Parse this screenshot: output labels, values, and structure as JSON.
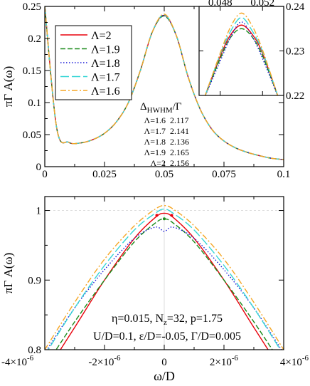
{
  "chart_data": [
    {
      "type": "line",
      "panel": "top",
      "xlim": [
        0,
        0.1
      ],
      "ylim": [
        0,
        0.25
      ],
      "xticks": [
        "0",
        "0.025",
        "0.05",
        "0.075",
        "0.1"
      ],
      "yticks": [
        "0",
        "0.05",
        "0.1",
        "0.15",
        "0.2",
        "0.25"
      ],
      "xlabel": "",
      "ylabel": "πΓ A(ω)",
      "legend_position": "top-left",
      "grid": false,
      "x": [
        0,
        0.005,
        0.01,
        0.015,
        0.02,
        0.025,
        0.03,
        0.035,
        0.04,
        0.045,
        0.05,
        0.055,
        0.06,
        0.065,
        0.07,
        0.075,
        0.08,
        0.085,
        0.09,
        0.095,
        0.1
      ],
      "series": [
        {
          "name": "Λ=2",
          "color": "#e8000b",
          "dash": "solid",
          "values": [
            0.25,
            0.06,
            0.038,
            0.037,
            0.042,
            0.052,
            0.07,
            0.1,
            0.15,
            0.21,
            0.236,
            0.205,
            0.14,
            0.09,
            0.058,
            0.04,
            0.029,
            0.022,
            0.017,
            0.013,
            0.011
          ]
        },
        {
          "name": "Λ=1.9",
          "color": "#1a8a1a",
          "dash": "dashed",
          "values": [
            0.25,
            0.06,
            0.038,
            0.037,
            0.042,
            0.052,
            0.07,
            0.1,
            0.15,
            0.21,
            0.235,
            0.205,
            0.14,
            0.09,
            0.058,
            0.04,
            0.029,
            0.022,
            0.017,
            0.013,
            0.011
          ]
        },
        {
          "name": "Λ=1.8",
          "color": "#1a1ad8",
          "dash": "dotted",
          "values": [
            0.25,
            0.06,
            0.038,
            0.037,
            0.042,
            0.052,
            0.07,
            0.1,
            0.15,
            0.21,
            0.236,
            0.205,
            0.14,
            0.09,
            0.058,
            0.04,
            0.029,
            0.022,
            0.017,
            0.013,
            0.011
          ]
        },
        {
          "name": "Λ=1.7",
          "color": "#35d6d6",
          "dash": "longdash",
          "values": [
            0.25,
            0.06,
            0.038,
            0.037,
            0.042,
            0.052,
            0.07,
            0.1,
            0.15,
            0.21,
            0.237,
            0.205,
            0.14,
            0.09,
            0.058,
            0.04,
            0.029,
            0.022,
            0.017,
            0.013,
            0.011
          ]
        },
        {
          "name": "Λ=1.6",
          "color": "#f5a623",
          "dash": "dashdot",
          "values": [
            0.25,
            0.06,
            0.038,
            0.037,
            0.042,
            0.052,
            0.07,
            0.1,
            0.15,
            0.21,
            0.238,
            0.205,
            0.14,
            0.09,
            0.058,
            0.04,
            0.029,
            0.022,
            0.017,
            0.013,
            0.011
          ]
        }
      ],
      "annotation": {
        "header": "Δ",
        "header_sub": "HWHM",
        "header_tail": "/Γ",
        "rows": [
          {
            "label": "Λ=1.6",
            "value": "2.117"
          },
          {
            "label": "Λ=1.7",
            "value": "2.141"
          },
          {
            "label": "Λ=1.8",
            "value": "2.136"
          },
          {
            "label": "Λ=1.9",
            "value": "2.165"
          },
          {
            "label": "Λ=2",
            "value": "2.156"
          }
        ]
      }
    },
    {
      "type": "line",
      "panel": "inset",
      "xlim": [
        0.046,
        0.054
      ],
      "ylim": [
        0.22,
        0.24
      ],
      "xticks": [
        "0.048",
        "0.052"
      ],
      "yticks": [
        "0.22",
        "0.23",
        "0.24"
      ],
      "x": [
        0.0465,
        0.048,
        0.049,
        0.05,
        0.051,
        0.052,
        0.0535
      ],
      "series": [
        {
          "name": "Λ=2",
          "values": [
            0.2195,
            0.2288,
            0.2337,
            0.2358,
            0.2338,
            0.2295,
            0.2195
          ]
        },
        {
          "name": "Λ=1.9",
          "values": [
            0.2195,
            0.2283,
            0.2331,
            0.235,
            0.2332,
            0.2289,
            0.2195
          ]
        },
        {
          "name": "Λ=1.8",
          "values": [
            0.2195,
            0.2277,
            0.2332,
            0.2365,
            0.2333,
            0.2283,
            0.2195
          ]
        },
        {
          "name": "Λ=1.7",
          "values": [
            0.2195,
            0.2292,
            0.2345,
            0.2375,
            0.2346,
            0.2298,
            0.2195
          ]
        },
        {
          "name": "Λ=1.6",
          "values": [
            0.2195,
            0.2295,
            0.2355,
            0.2385,
            0.2357,
            0.2302,
            0.2195
          ]
        }
      ]
    },
    {
      "type": "line",
      "panel": "bottom",
      "xlim": [
        -4e-06,
        4e-06
      ],
      "ylim": [
        0.8,
        1.02
      ],
      "xticks": [
        {
          "mant": "-4×10",
          "exp": "-6"
        },
        {
          "mant": "-2×10",
          "exp": "-6"
        },
        {
          "mant": "0",
          "exp": ""
        },
        {
          "mant": "2×10",
          "exp": "-6"
        },
        {
          "mant": "4×10",
          "exp": "-6"
        }
      ],
      "yticks": [
        "0.8",
        "0.9",
        "1"
      ],
      "xlabel": "ω/D",
      "ylabel": "πΓ A(ω)",
      "grid": false,
      "reference_line": 1,
      "x": [
        -4e-06,
        -3e-06,
        -2e-06,
        -1e-06,
        -3e-07,
        0,
        3e-07,
        1e-06,
        2e-06,
        3e-06,
        4e-06
      ],
      "series": [
        {
          "name": "Λ=2",
          "values": [
            0.765,
            0.832,
            0.9,
            0.96,
            0.99,
            0.996,
            0.99,
            0.96,
            0.9,
            0.832,
            0.765
          ]
        },
        {
          "name": "Λ=1.9",
          "values": [
            0.775,
            0.84,
            0.9,
            0.955,
            0.982,
            0.988,
            0.982,
            0.955,
            0.9,
            0.84,
            0.775
          ]
        },
        {
          "name": "Λ=1.8",
          "values": [
            0.795,
            0.86,
            0.915,
            0.96,
            0.976,
            0.97,
            0.976,
            0.96,
            0.915,
            0.86,
            0.795
          ]
        },
        {
          "name": "Λ=1.7",
          "values": [
            0.792,
            0.86,
            0.921,
            0.972,
            0.996,
            1.002,
            0.996,
            0.972,
            0.921,
            0.86,
            0.792
          ]
        },
        {
          "name": "Λ=1.6",
          "values": [
            0.8,
            0.868,
            0.93,
            0.978,
            1.002,
            1.007,
            1.002,
            0.978,
            0.93,
            0.868,
            0.8
          ]
        }
      ],
      "annotation_lines": [
        {
          "parts": [
            {
              "t": "η=0.015, N"
            },
            {
              "t": "z",
              "sub": true
            },
            {
              "t": "=32, p=1.75"
            }
          ]
        },
        {
          "parts": [
            {
              "t": "U/D=0.1, ε/D=-0.05, Γ/D=0.005"
            }
          ]
        }
      ]
    }
  ]
}
